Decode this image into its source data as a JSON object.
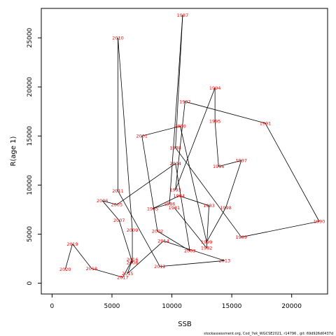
{
  "chart_data": {
    "type": "line",
    "xlabel": "SSB",
    "ylabel": "R(age 1)",
    "xlim": [
      -900,
      23000
    ],
    "ylim": [
      -1100,
      28000
    ],
    "x_ticks": [
      0,
      5000,
      10000,
      15000,
      20000
    ],
    "y_ticks": [
      0,
      5000,
      10000,
      15000,
      20000,
      25000
    ],
    "x_tick_labels": [
      "0",
      "5000",
      "10000",
      "15000",
      "20000"
    ],
    "y_tick_labels": [
      "0",
      "5000",
      "10000",
      "15000",
      "20000",
      "25000"
    ],
    "grid": false,
    "label_color": "#ff0000",
    "line_color": "#000000",
    "points": [
      {
        "year": "1981",
        "x": 10200,
        "y": 7700
      },
      {
        "year": "1982",
        "x": 12900,
        "y": 3600
      },
      {
        "year": "1983",
        "x": 13100,
        "y": 7900
      },
      {
        "year": "1984",
        "x": 10600,
        "y": 8900
      },
      {
        "year": "1985",
        "x": 8400,
        "y": 7600
      },
      {
        "year": "1986",
        "x": 9800,
        "y": 8100
      },
      {
        "year": "1987",
        "x": 10900,
        "y": 27300
      },
      {
        "year": "1988",
        "x": 10300,
        "y": 13800
      },
      {
        "year": "1989",
        "x": 15800,
        "y": 4700
      },
      {
        "year": "1990",
        "x": 22300,
        "y": 6300
      },
      {
        "year": "1991",
        "x": 17800,
        "y": 16300
      },
      {
        "year": "1992",
        "x": 11100,
        "y": 18500
      },
      {
        "year": "1993",
        "x": 10300,
        "y": 9500
      },
      {
        "year": "1994",
        "x": 13600,
        "y": 19900
      },
      {
        "year": "1995",
        "x": 13600,
        "y": 16500
      },
      {
        "year": "1996",
        "x": 13900,
        "y": 11900
      },
      {
        "year": "1997",
        "x": 15800,
        "y": 12500
      },
      {
        "year": "1998",
        "x": 14500,
        "y": 7700
      },
      {
        "year": "1999",
        "x": 12900,
        "y": 4200
      },
      {
        "year": "2000",
        "x": 10700,
        "y": 16000
      },
      {
        "year": "2001",
        "x": 7500,
        "y": 15000
      },
      {
        "year": "2002",
        "x": 8800,
        "y": 5300
      },
      {
        "year": "2003",
        "x": 11500,
        "y": 3300
      },
      {
        "year": "2004",
        "x": 10300,
        "y": 12200
      },
      {
        "year": "2005",
        "x": 5400,
        "y": 8000
      },
      {
        "year": "2006",
        "x": 4200,
        "y": 8400
      },
      {
        "year": "2007",
        "x": 5600,
        "y": 6400
      },
      {
        "year": "2008",
        "x": 6700,
        "y": 2100
      },
      {
        "year": "2009",
        "x": 6700,
        "y": 5400
      },
      {
        "year": "2010",
        "x": 5500,
        "y": 25000
      },
      {
        "year": "2011",
        "x": 5500,
        "y": 9400
      },
      {
        "year": "2012",
        "x": 9000,
        "y": 1700
      },
      {
        "year": "2013",
        "x": 14400,
        "y": 2300
      },
      {
        "year": "2014",
        "x": 9300,
        "y": 4300
      },
      {
        "year": "2015",
        "x": 6300,
        "y": 1000
      },
      {
        "year": "2016",
        "x": 6700,
        "y": 2400
      },
      {
        "year": "2017",
        "x": 5900,
        "y": 600
      },
      {
        "year": "2018",
        "x": 3300,
        "y": 1500
      },
      {
        "year": "2019",
        "x": 1700,
        "y": 4000
      },
      {
        "year": "2020",
        "x": 1100,
        "y": 1400
      }
    ]
  },
  "footer": "stockassessment.org, Cod_7ek_WGCSE2021, r14796 , git: 69d926d0437d"
}
